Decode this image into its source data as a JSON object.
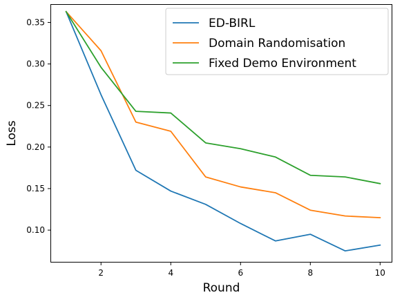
{
  "chart_data": {
    "type": "line",
    "xlabel": "Round",
    "ylabel": "Loss",
    "x": [
      1,
      2,
      3,
      4,
      5,
      6,
      7,
      8,
      9,
      10
    ],
    "xlim": [
      0.55,
      10.35
    ],
    "ylim": [
      0.061,
      0.372
    ],
    "xticks": [
      2,
      4,
      6,
      8,
      10
    ],
    "yticks": [
      0.1,
      0.15,
      0.2,
      0.25,
      0.3,
      0.35
    ],
    "xtick_labels": [
      "2",
      "4",
      "6",
      "8",
      "10"
    ],
    "ytick_labels": [
      "0.10",
      "0.15",
      "0.20",
      "0.25",
      "0.30",
      "0.35"
    ],
    "grid": false,
    "legend_position": "top-right",
    "series": [
      {
        "name": "ED-BIRL",
        "color": "#1f77b4",
        "values": [
          0.363,
          0.263,
          0.172,
          0.147,
          0.131,
          0.108,
          0.087,
          0.095,
          0.075,
          0.082
        ]
      },
      {
        "name": "Domain Randomisation",
        "color": "#ff7f0e",
        "values": [
          0.363,
          0.316,
          0.23,
          0.219,
          0.164,
          0.152,
          0.145,
          0.124,
          0.117,
          0.115
        ]
      },
      {
        "name": "Fixed Demo Environment",
        "color": "#2ca02c",
        "values": [
          0.363,
          0.296,
          0.243,
          0.241,
          0.205,
          0.198,
          0.188,
          0.166,
          0.164,
          0.156
        ]
      }
    ]
  }
}
